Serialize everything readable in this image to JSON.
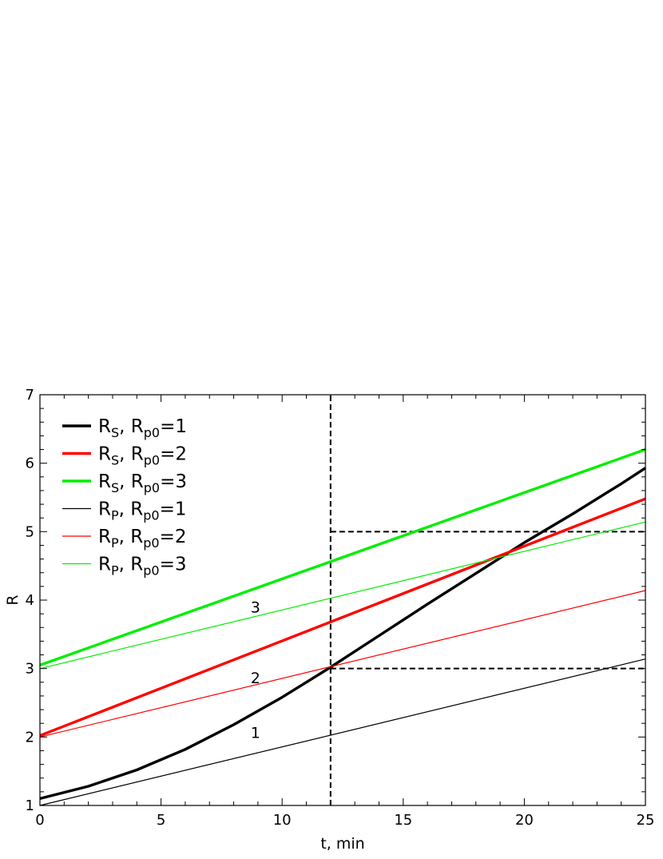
{
  "chart_data": {
    "type": "line",
    "xlabel": "t, min",
    "ylabel": "R",
    "xlim": [
      0,
      25
    ],
    "ylim": [
      1,
      7
    ],
    "x_ticks": [
      "0",
      "5",
      "10",
      "15",
      "20",
      "25"
    ],
    "y_ticks": [
      "1",
      "2",
      "3",
      "4",
      "5",
      "6",
      "7"
    ],
    "grid": false,
    "legend_position": "top-left",
    "series": [
      {
        "name": "R_S, R_p0=1",
        "legend_main": "R",
        "legend_sub1": "S",
        "legend_mid": ", R",
        "legend_sub2": "p0",
        "legend_tail": "=1",
        "color": "#000000",
        "weight": "thick",
        "x": [
          0,
          2,
          4,
          6,
          8,
          10,
          12,
          14,
          16,
          18,
          20,
          22,
          24,
          25
        ],
        "y": [
          1.1,
          1.28,
          1.52,
          1.82,
          2.18,
          2.58,
          3.02,
          3.48,
          3.94,
          4.39,
          4.84,
          5.26,
          5.7,
          5.93
        ]
      },
      {
        "name": "R_S, R_p0=2",
        "legend_main": "R",
        "legend_sub1": "S",
        "legend_mid": ", R",
        "legend_sub2": "p0",
        "legend_tail": "=2",
        "color": "#ff0000",
        "weight": "thick",
        "x": [
          0,
          25
        ],
        "y": [
          2.02,
          5.48
        ]
      },
      {
        "name": "R_S, R_p0=3",
        "legend_main": "R",
        "legend_sub1": "S",
        "legend_mid": ", R",
        "legend_sub2": "p0",
        "legend_tail": "=3",
        "color": "#00ee00",
        "weight": "thick",
        "x": [
          0,
          25
        ],
        "y": [
          3.05,
          6.2
        ]
      },
      {
        "name": "R_P, R_p0=1",
        "legend_main": "R",
        "legend_sub1": "P",
        "legend_mid": ", R",
        "legend_sub2": "p0",
        "legend_tail": "=1",
        "color": "#000000",
        "weight": "thin",
        "x": [
          0,
          25
        ],
        "y": [
          1.0,
          3.14
        ]
      },
      {
        "name": "R_P, R_p0=2",
        "legend_main": "R",
        "legend_sub1": "P",
        "legend_mid": ", R",
        "legend_sub2": "p0",
        "legend_tail": "=2",
        "color": "#ff0000",
        "weight": "thin",
        "x": [
          0,
          25
        ],
        "y": [
          2.0,
          4.14
        ]
      },
      {
        "name": "R_P, R_p0=3",
        "legend_main": "R",
        "legend_sub1": "P",
        "legend_mid": ", R",
        "legend_sub2": "p0",
        "legend_tail": "=3",
        "color": "#00ee00",
        "weight": "thin",
        "x": [
          0,
          25
        ],
        "y": [
          3.0,
          5.14
        ]
      }
    ],
    "reference_lines": [
      {
        "kind": "vertical",
        "x": 12,
        "y_from": 1,
        "y_to": 7
      },
      {
        "kind": "horizontal",
        "y": 5,
        "x_from": 12,
        "x_to": 25
      },
      {
        "kind": "horizontal",
        "y": 3,
        "x_from": 12,
        "x_to": 25
      }
    ],
    "annotations": [
      {
        "text": "1",
        "x": 8.9,
        "y": 2.07
      },
      {
        "text": "2",
        "x": 8.9,
        "y": 2.87
      },
      {
        "text": "3",
        "x": 8.9,
        "y": 3.9
      }
    ]
  }
}
